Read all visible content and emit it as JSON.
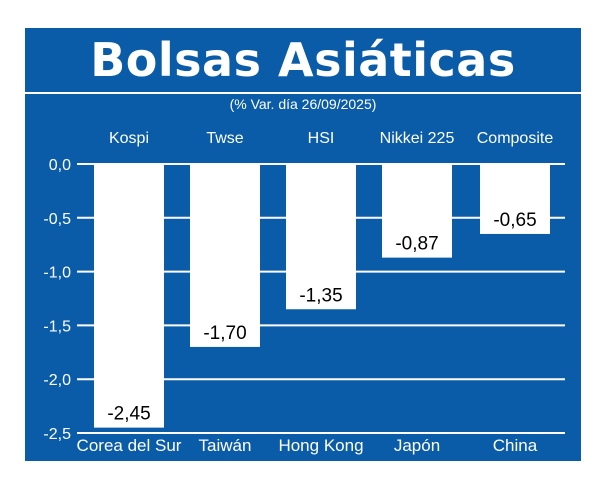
{
  "header": {
    "title": "Bolsas Asiáticas",
    "subtitle": "(% Var. día  26/09/2025)"
  },
  "colors": {
    "background": "#0a5ca8",
    "bars": "#ffffff",
    "text": "#ffffff",
    "value_text": "#000000"
  },
  "chart_data": {
    "type": "bar",
    "title": "Bolsas Asiáticas",
    "subtitle": "(% Var. día  26/09/2025)",
    "indices": [
      "Kospi",
      "Twse",
      "HSI",
      "Nikkei 225",
      "Composite"
    ],
    "categories": [
      "Corea del Sur",
      "Taiwán",
      "Hong Kong",
      "Japón",
      "China"
    ],
    "values": [
      -2.45,
      -1.7,
      -1.35,
      -0.87,
      -0.65
    ],
    "value_labels": [
      "-2,45",
      "-1,70",
      "-1,35",
      "-0,87",
      "-0,65"
    ],
    "yticks": [
      0,
      -0.5,
      -1,
      -1.5,
      -2,
      -2.5
    ],
    "ytick_labels": [
      "0,0",
      "-0,5",
      "-1,0",
      "-1,5",
      "-2,0",
      "-2,5"
    ],
    "ylim": [
      -2.5,
      0
    ],
    "grid": true,
    "legend": "none"
  }
}
